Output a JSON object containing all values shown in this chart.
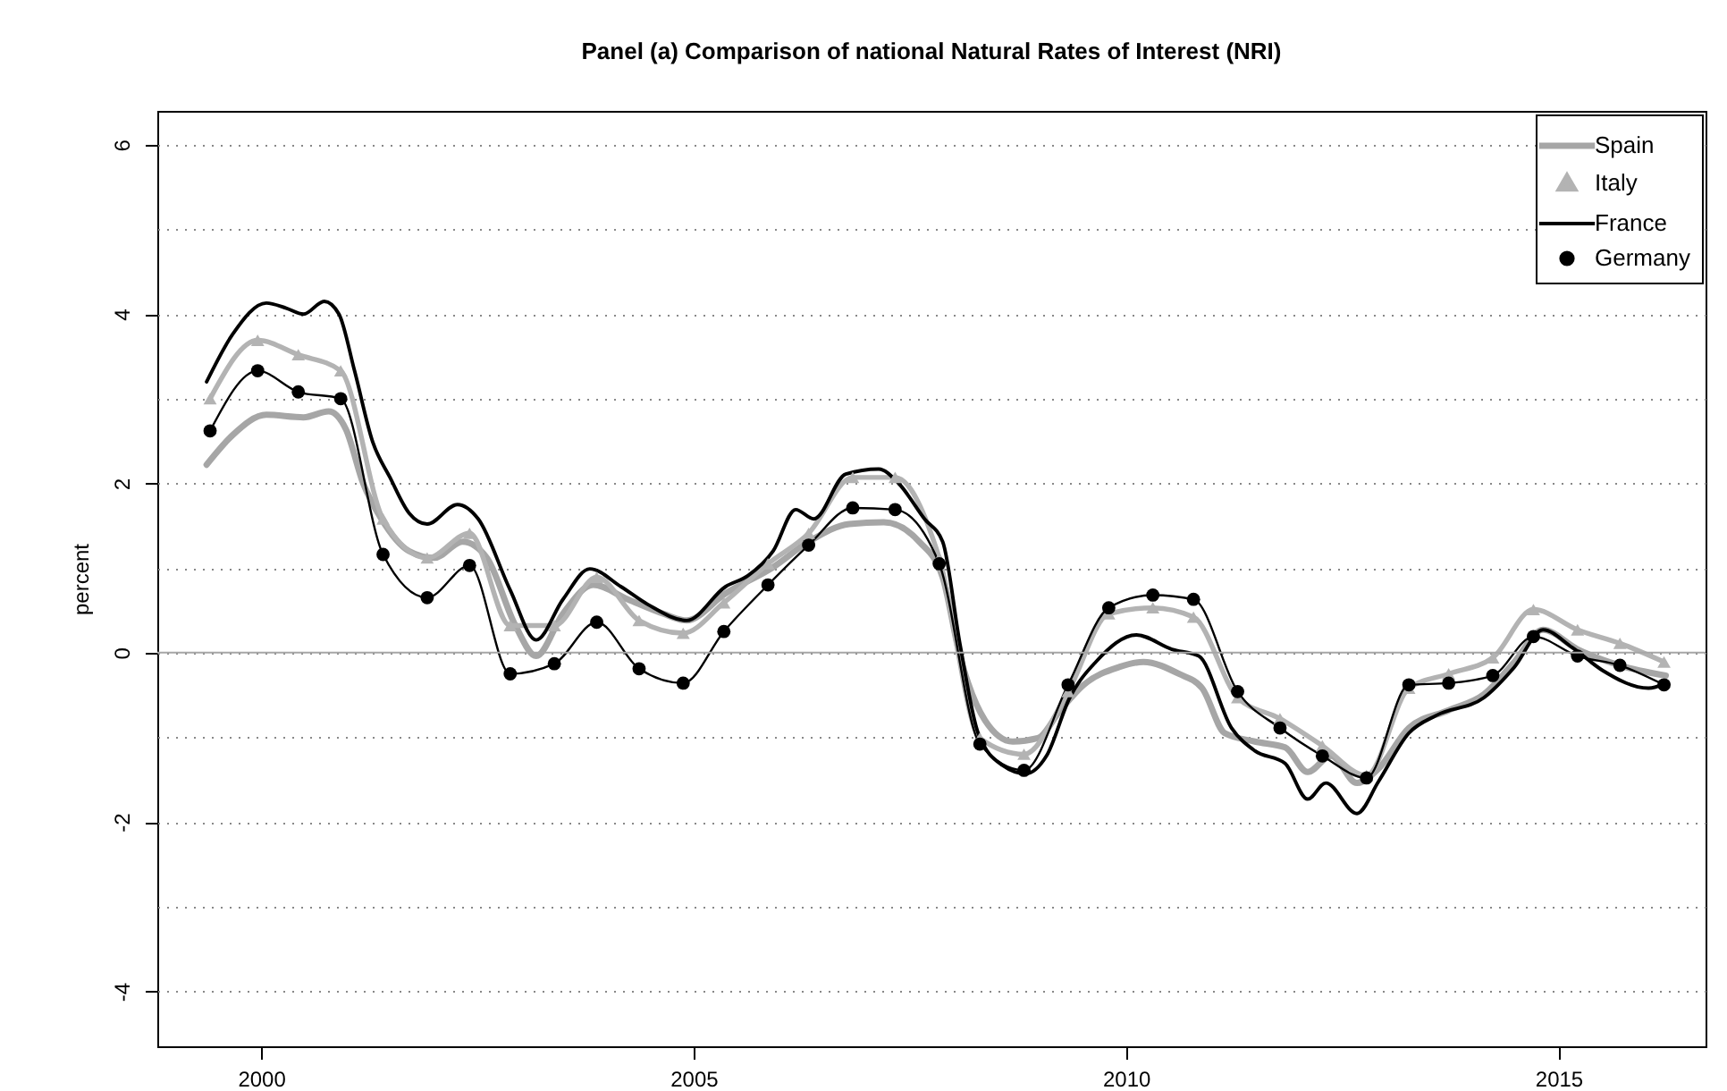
{
  "chart_data": {
    "type": "line",
    "title": "Panel (a) Comparison of national Natural Rates of Interest (NRI)",
    "ylabel": "percent",
    "xlim": [
      1998.8,
      2016.7
    ],
    "xticks": [
      2000,
      2005,
      2010,
      2015
    ],
    "ylim": [
      -4.65,
      6.4
    ],
    "yticks": [
      -4,
      {
        "value": -3,
        "label": null
      },
      -2,
      {
        "value": -1,
        "label": null
      },
      0,
      {
        "value": 1,
        "label": null
      },
      2,
      {
        "value": 3,
        "label": null
      },
      4,
      {
        "value": 5,
        "label": null
      },
      6
    ],
    "grid": "y",
    "legend": "top right",
    "line_style": "solid",
    "ref_lines": [
      {
        "axis": "y",
        "value": 0,
        "color": "#a6a6a6"
      }
    ],
    "series": [
      {
        "name": "Spain",
        "color": "#a6a6a6",
        "marker": "none",
        "x": [
          1999.37,
          1999.67,
          2000.06,
          2000.49,
          2000.78,
          2000.98,
          2001.18,
          2001.39,
          2001.71,
          2002.0,
          2002.33,
          2002.61,
          2002.94,
          2003.18,
          2003.49,
          2003.84,
          2004.24,
          2004.65,
          2004.92,
          2005.37,
          2005.92,
          2006.33,
          2006.8,
          2007.2,
          2007.61,
          2007.88,
          2008.08,
          2008.37,
          2008.69,
          2008.98,
          2009.24,
          2009.51,
          2009.92,
          2010.2,
          2010.61,
          2010.88,
          2011.14,
          2011.49,
          2011.84,
          2012.1,
          2012.37,
          2012.67,
          2012.92,
          2013.27,
          2013.73,
          2014.14,
          2014.49,
          2014.82,
          2015.22,
          2015.71,
          2016.24
        ],
        "values": [
          2.22,
          2.57,
          2.81,
          2.78,
          2.85,
          2.64,
          2.0,
          1.58,
          1.2,
          1.12,
          1.31,
          1.12,
          0.32,
          -0.04,
          0.46,
          0.8,
          0.63,
          0.46,
          0.38,
          0.7,
          1.01,
          1.31,
          1.52,
          1.54,
          1.31,
          0.89,
          -0.04,
          -0.8,
          -1.05,
          -1.01,
          -0.68,
          -0.38,
          -0.17,
          -0.11,
          -0.25,
          -0.42,
          -0.95,
          -1.05,
          -1.12,
          -1.41,
          -1.22,
          -1.54,
          -1.37,
          -0.89,
          -0.68,
          -0.49,
          -0.11,
          0.27,
          0.04,
          -0.15,
          -0.27
        ]
      },
      {
        "name": "Italy",
        "color": "#b3b3b3",
        "marker": "triangle",
        "x": [
          1999.41,
          1999.96,
          2000.43,
          2000.92,
          2001.41,
          2001.92,
          2002.41,
          2002.88,
          2003.39,
          2003.88,
          2004.37,
          2004.88,
          2005.35,
          2005.86,
          2006.33,
          2006.84,
          2007.33,
          2007.84,
          2008.31,
          2008.82,
          2009.33,
          2009.8,
          2010.31,
          2010.78,
          2011.29,
          2011.78,
          2012.27,
          2012.78,
          2013.27,
          2013.73,
          2014.24,
          2014.71,
          2015.22,
          2015.71,
          2016.22
        ],
        "values": [
          3.0,
          3.69,
          3.52,
          3.33,
          1.58,
          1.12,
          1.41,
          0.32,
          0.32,
          0.89,
          0.38,
          0.23,
          0.59,
          1.05,
          1.41,
          2.07,
          2.07,
          1.12,
          -1.01,
          -1.2,
          -0.46,
          0.46,
          0.53,
          0.42,
          -0.53,
          -0.78,
          -1.1,
          -1.45,
          -0.42,
          -0.25,
          -0.06,
          0.51,
          0.27,
          0.11,
          -0.11
        ]
      },
      {
        "name": "France",
        "color": "#000000",
        "marker": "none",
        "x": [
          1999.37,
          1999.67,
          2000.06,
          2000.29,
          2000.49,
          2000.73,
          2000.9,
          2001.08,
          2001.29,
          2001.49,
          2001.71,
          2001.92,
          2002.27,
          2002.51,
          2002.88,
          2003.18,
          2003.49,
          2003.8,
          2004.16,
          2004.47,
          2004.92,
          2005.37,
          2005.63,
          2005.92,
          2006.18,
          2006.39,
          2006.76,
          2007.14,
          2007.37,
          2007.67,
          2007.88,
          2008.08,
          2008.29,
          2008.57,
          2008.84,
          2009.08,
          2009.35,
          2009.65,
          2010.12,
          2010.53,
          2010.84,
          2011.22,
          2011.49,
          2011.84,
          2012.1,
          2012.31,
          2012.67,
          2012.92,
          2013.27,
          2013.59,
          2014.14,
          2014.49,
          2014.82,
          2015.16,
          2015.51,
          2016.04,
          2016.24
        ],
        "values": [
          3.2,
          3.76,
          4.13,
          4.07,
          4.0,
          4.15,
          4.0,
          3.33,
          2.49,
          2.07,
          1.65,
          1.52,
          1.75,
          1.58,
          0.74,
          0.15,
          0.63,
          0.99,
          0.78,
          0.57,
          0.38,
          0.78,
          0.91,
          1.2,
          1.69,
          1.58,
          2.11,
          2.17,
          2.0,
          1.58,
          1.31,
          0.1,
          -0.95,
          -1.33,
          -1.43,
          -1.22,
          -0.53,
          -0.11,
          0.21,
          0.04,
          -0.04,
          -0.89,
          -1.16,
          -1.31,
          -1.73,
          -1.54,
          -1.9,
          -1.52,
          -0.95,
          -0.74,
          -0.53,
          -0.17,
          0.27,
          0.06,
          -0.21,
          -0.42,
          -0.36
        ]
      },
      {
        "name": "Germany",
        "color": "#000000",
        "marker": "circle",
        "x": [
          1999.41,
          1999.96,
          2000.43,
          2000.92,
          2001.41,
          2001.92,
          2002.41,
          2002.88,
          2003.39,
          2003.88,
          2004.37,
          2004.88,
          2005.35,
          2005.86,
          2006.33,
          2006.84,
          2007.33,
          2007.84,
          2008.31,
          2008.82,
          2009.33,
          2009.8,
          2010.31,
          2010.78,
          2011.29,
          2011.78,
          2012.27,
          2012.78,
          2013.27,
          2013.73,
          2014.24,
          2014.71,
          2015.22,
          2015.71,
          2016.22
        ],
        "values": [
          2.62,
          3.33,
          3.08,
          3.0,
          1.16,
          0.65,
          1.03,
          -0.25,
          -0.13,
          0.36,
          -0.19,
          -0.36,
          0.25,
          0.8,
          1.27,
          1.71,
          1.69,
          1.05,
          -1.08,
          -1.39,
          -0.38,
          0.53,
          0.68,
          0.63,
          -0.46,
          -0.89,
          -1.22,
          -1.48,
          -0.38,
          -0.36,
          -0.27,
          0.19,
          -0.04,
          -0.15,
          -0.38
        ]
      }
    ]
  }
}
